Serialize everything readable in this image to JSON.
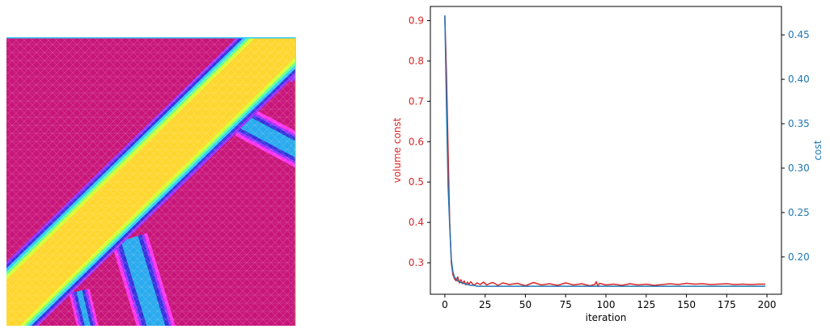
{
  "topology_image": {
    "colors": {
      "background": "#c8157a",
      "bar": "#ffd62e",
      "halo_yellow": "#d7ff33",
      "halo_green": "#66ff99",
      "halo_cyan": "#33ccff",
      "channel": "#29aaee",
      "edge_blue": "#3333dd",
      "edge_violet": "#9933ff",
      "edge_magenta": "#ff33ee"
    }
  },
  "chart_data": {
    "type": "line",
    "xlabel": "iteration",
    "y_left_label": "volume const",
    "y_right_label": "cost",
    "xlim": [
      -9,
      209
    ],
    "ylim_left": [
      0.222,
      0.935
    ],
    "ylim_right": [
      0.158,
      0.482
    ],
    "xticks": [
      "0",
      "25",
      "50",
      "75",
      "100",
      "125",
      "150",
      "175",
      "200"
    ],
    "yticks_left": [
      "0.3",
      "0.4",
      "0.5",
      "0.6",
      "0.7",
      "0.8",
      "0.9"
    ],
    "yticks_right": [
      "0.20",
      "0.25",
      "0.30",
      "0.35",
      "0.40",
      "0.45"
    ],
    "grid": false,
    "series": [
      {
        "axis": "left",
        "color": "#d62728",
        "x": [
          0,
          1,
          2,
          3,
          4,
          5,
          6,
          7,
          8,
          9,
          10,
          11,
          12,
          13,
          14,
          15,
          16,
          18,
          20,
          22,
          24,
          26,
          28,
          30,
          33,
          36,
          40,
          45,
          50,
          55,
          60,
          65,
          70,
          75,
          80,
          85,
          90,
          93,
          94,
          95,
          96,
          100,
          105,
          110,
          115,
          120,
          125,
          130,
          135,
          140,
          145,
          150,
          155,
          160,
          165,
          170,
          175,
          180,
          185,
          190,
          195,
          199
        ],
        "y": [
          0.91,
          0.77,
          0.58,
          0.4,
          0.3,
          0.27,
          0.26,
          0.255,
          0.265,
          0.25,
          0.258,
          0.248,
          0.255,
          0.245,
          0.252,
          0.247,
          0.253,
          0.244,
          0.25,
          0.246,
          0.252,
          0.245,
          0.249,
          0.251,
          0.244,
          0.25,
          0.246,
          0.249,
          0.243,
          0.251,
          0.245,
          0.248,
          0.244,
          0.25,
          0.245,
          0.248,
          0.243,
          0.246,
          0.253,
          0.242,
          0.249,
          0.245,
          0.247,
          0.244,
          0.248,
          0.245,
          0.247,
          0.244,
          0.246,
          0.248,
          0.246,
          0.249,
          0.247,
          0.248,
          0.246,
          0.247,
          0.248,
          0.246,
          0.247,
          0.246,
          0.247,
          0.247
        ]
      },
      {
        "axis": "right",
        "color": "#1f77b4",
        "x": [
          0,
          1,
          2,
          3,
          4,
          5,
          6,
          7,
          8,
          10,
          12,
          14,
          16,
          18,
          20,
          25,
          30,
          40,
          50,
          60,
          80,
          100,
          120,
          140,
          160,
          180,
          199
        ],
        "y": [
          0.472,
          0.37,
          0.28,
          0.235,
          0.197,
          0.183,
          0.177,
          0.175,
          0.173,
          0.171,
          0.17,
          0.169,
          0.168,
          0.168,
          0.167,
          0.167,
          0.167,
          0.167,
          0.167,
          0.167,
          0.167,
          0.167,
          0.167,
          0.167,
          0.167,
          0.167,
          0.167
        ]
      }
    ]
  }
}
